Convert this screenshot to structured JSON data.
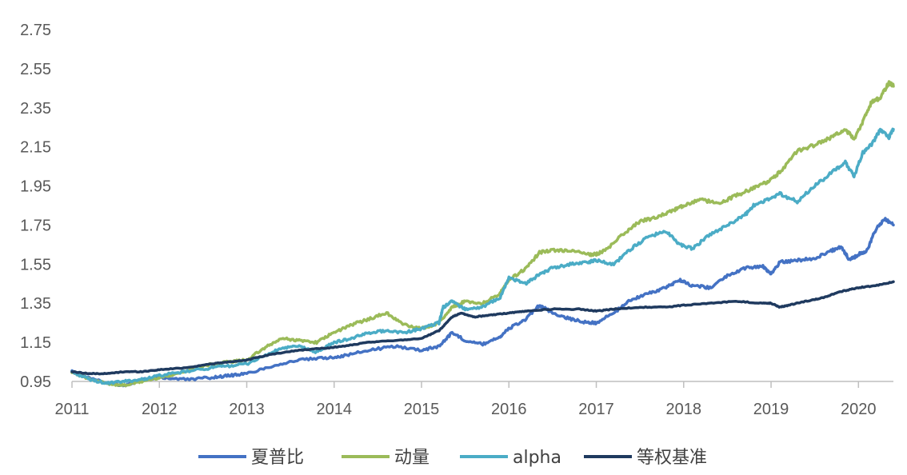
{
  "chart_data": {
    "type": "line",
    "title": "",
    "xlabel": "",
    "ylabel": "",
    "ylim": [
      0.95,
      2.75
    ],
    "yticks": [
      "0.95",
      "1.15",
      "1.35",
      "1.55",
      "1.75",
      "1.95",
      "2.15",
      "2.35",
      "2.55",
      "2.75"
    ],
    "xticks": [
      "2011",
      "2012",
      "2013",
      "2014",
      "2015",
      "2016",
      "2017",
      "2018",
      "2019",
      "2020"
    ],
    "xlim": [
      2011.0,
      2020.4
    ],
    "grid": false,
    "legend": "bottom",
    "series": [
      {
        "name": "夏普比",
        "color": "#4472C4",
        "x": [
          2011.0,
          2011.2,
          2011.4,
          2011.6,
          2011.8,
          2012.0,
          2012.3,
          2012.6,
          2012.8,
          2013.0,
          2013.3,
          2013.6,
          2013.9,
          2014.1,
          2014.4,
          2014.7,
          2015.0,
          2015.2,
          2015.35,
          2015.5,
          2015.7,
          2015.9,
          2016.0,
          2016.2,
          2016.35,
          2016.5,
          2016.7,
          2016.9,
          2017.0,
          2017.2,
          2017.4,
          2017.6,
          2017.8,
          2017.95,
          2018.1,
          2018.3,
          2018.5,
          2018.7,
          2018.9,
          2019.0,
          2019.1,
          2019.3,
          2019.5,
          2019.7,
          2019.8,
          2019.9,
          2020.0,
          2020.1,
          2020.2,
          2020.3,
          2020.4
        ],
        "y": [
          1.0,
          0.97,
          0.94,
          0.93,
          0.96,
          0.97,
          0.96,
          0.97,
          0.98,
          0.99,
          1.03,
          1.06,
          1.07,
          1.08,
          1.11,
          1.13,
          1.11,
          1.13,
          1.2,
          1.16,
          1.14,
          1.18,
          1.22,
          1.27,
          1.34,
          1.3,
          1.27,
          1.25,
          1.25,
          1.3,
          1.37,
          1.4,
          1.43,
          1.47,
          1.44,
          1.43,
          1.49,
          1.53,
          1.54,
          1.5,
          1.56,
          1.57,
          1.58,
          1.62,
          1.64,
          1.57,
          1.6,
          1.62,
          1.73,
          1.78,
          1.75
        ]
      },
      {
        "name": "动量",
        "color": "#9BBB59",
        "x": [
          2011.0,
          2011.2,
          2011.4,
          2011.6,
          2011.8,
          2012.0,
          2012.3,
          2012.6,
          2012.8,
          2013.0,
          2013.2,
          2013.4,
          2013.6,
          2013.8,
          2014.0,
          2014.2,
          2014.4,
          2014.6,
          2014.8,
          2015.0,
          2015.2,
          2015.35,
          2015.5,
          2015.7,
          2015.9,
          2016.0,
          2016.2,
          2016.35,
          2016.5,
          2016.7,
          2016.9,
          2017.0,
          2017.1,
          2017.3,
          2017.5,
          2017.7,
          2017.9,
          2018.0,
          2018.2,
          2018.4,
          2018.6,
          2018.8,
          2018.95,
          2019.1,
          2019.3,
          2019.5,
          2019.7,
          2019.85,
          2019.95,
          2020.05,
          2020.15,
          2020.25,
          2020.35,
          2020.4
        ],
        "y": [
          1.0,
          0.96,
          0.94,
          0.93,
          0.95,
          0.97,
          1.0,
          1.04,
          1.05,
          1.06,
          1.12,
          1.17,
          1.16,
          1.15,
          1.2,
          1.24,
          1.27,
          1.3,
          1.24,
          1.22,
          1.25,
          1.33,
          1.36,
          1.35,
          1.4,
          1.47,
          1.53,
          1.61,
          1.62,
          1.62,
          1.6,
          1.6,
          1.62,
          1.7,
          1.77,
          1.79,
          1.83,
          1.85,
          1.88,
          1.86,
          1.9,
          1.94,
          1.97,
          2.02,
          2.13,
          2.16,
          2.2,
          2.24,
          2.19,
          2.28,
          2.38,
          2.4,
          2.48,
          2.46
        ]
      },
      {
        "name": "alpha",
        "color": "#4BACC6",
        "x": [
          2011.0,
          2011.2,
          2011.4,
          2011.6,
          2011.8,
          2012.0,
          2012.3,
          2012.6,
          2012.8,
          2013.0,
          2013.2,
          2013.4,
          2013.6,
          2013.8,
          2014.0,
          2014.2,
          2014.4,
          2014.6,
          2014.8,
          2015.0,
          2015.2,
          2015.25,
          2015.35,
          2015.5,
          2015.7,
          2015.9,
          2016.0,
          2016.2,
          2016.35,
          2016.5,
          2016.7,
          2016.9,
          2017.0,
          2017.2,
          2017.4,
          2017.6,
          2017.8,
          2017.95,
          2018.1,
          2018.3,
          2018.5,
          2018.7,
          2018.8,
          2018.95,
          2019.1,
          2019.3,
          2019.5,
          2019.7,
          2019.85,
          2019.95,
          2020.05,
          2020.15,
          2020.25,
          2020.35,
          2020.4
        ],
        "y": [
          1.0,
          0.96,
          0.94,
          0.95,
          0.96,
          0.98,
          1.0,
          1.02,
          1.03,
          1.04,
          1.08,
          1.12,
          1.13,
          1.1,
          1.15,
          1.17,
          1.2,
          1.21,
          1.2,
          1.22,
          1.25,
          1.33,
          1.36,
          1.32,
          1.33,
          1.38,
          1.48,
          1.45,
          1.5,
          1.53,
          1.55,
          1.56,
          1.57,
          1.55,
          1.63,
          1.69,
          1.72,
          1.65,
          1.63,
          1.7,
          1.75,
          1.8,
          1.85,
          1.88,
          1.91,
          1.87,
          1.95,
          2.02,
          2.07,
          2.0,
          2.12,
          2.16,
          2.24,
          2.2,
          2.24
        ]
      },
      {
        "name": "等权基准",
        "color": "#1F3A5F",
        "x": [
          2011.0,
          2011.2,
          2011.4,
          2011.6,
          2011.8,
          2012.0,
          2012.3,
          2012.6,
          2012.8,
          2013.0,
          2013.3,
          2013.6,
          2013.9,
          2014.1,
          2014.4,
          2014.7,
          2015.0,
          2015.2,
          2015.35,
          2015.45,
          2015.6,
          2015.8,
          2016.0,
          2016.2,
          2016.5,
          2016.8,
          2017.0,
          2017.2,
          2017.5,
          2017.8,
          2018.0,
          2018.3,
          2018.6,
          2018.9,
          2019.0,
          2019.1,
          2019.2,
          2019.4,
          2019.6,
          2019.8,
          2020.0,
          2020.2,
          2020.4
        ],
        "y": [
          1.0,
          0.99,
          0.99,
          1.0,
          1.0,
          1.01,
          1.02,
          1.04,
          1.05,
          1.06,
          1.09,
          1.11,
          1.12,
          1.13,
          1.15,
          1.16,
          1.17,
          1.21,
          1.28,
          1.3,
          1.28,
          1.29,
          1.3,
          1.31,
          1.32,
          1.32,
          1.31,
          1.32,
          1.33,
          1.33,
          1.34,
          1.35,
          1.36,
          1.35,
          1.35,
          1.33,
          1.34,
          1.36,
          1.38,
          1.41,
          1.43,
          1.44,
          1.46
        ]
      }
    ]
  }
}
